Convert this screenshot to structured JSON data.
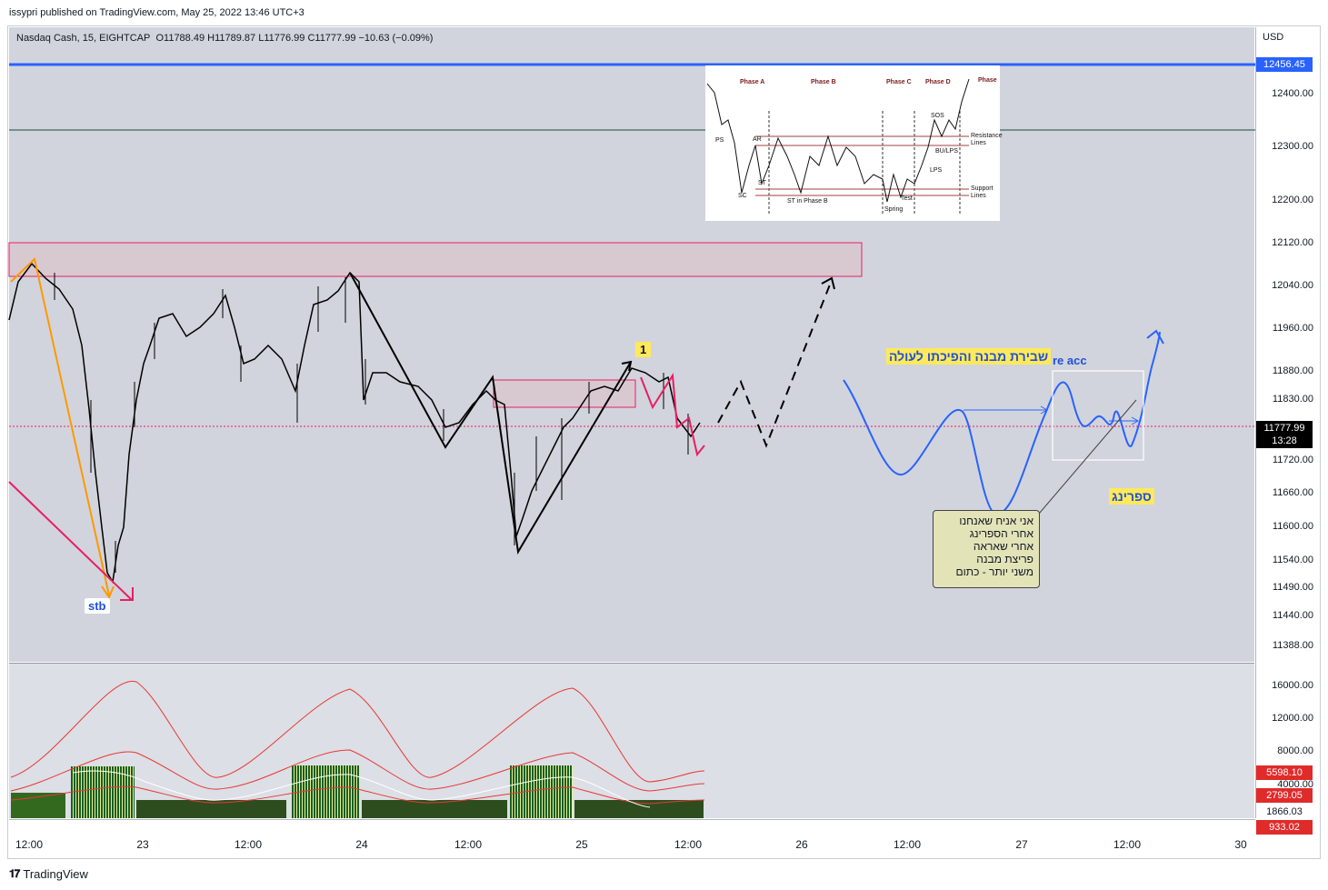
{
  "publisher_line": "issypri published on TradingView.com, May 25, 2022 13:46 UTC+3",
  "legend": {
    "symbol": "Nasdaq Cash, 15, EIGHTCAP",
    "ohlc": "O11788.49  H11789.87  L11776.99  C11777.99  −10.63 (−0.09%)"
  },
  "currency": "USD",
  "price_axis": [
    "12400.00",
    "12300.00",
    "12200.00",
    "12120.00",
    "12040.00",
    "11960.00",
    "11880.00",
    "11830.00",
    "11720.00",
    "11660.00",
    "11600.00",
    "11540.00",
    "11490.00",
    "11440.00",
    "11388.00"
  ],
  "volume_axis": [
    "16000.00",
    "12000.00",
    "8000.00",
    "4000.00"
  ],
  "badges": {
    "line_price": "12456.45",
    "last_price": "11777.99",
    "countdown": "13:28",
    "vol_a": "5598.10",
    "vol_b": "2799.05",
    "vol_c": "1866.03",
    "vol_d": "933.02"
  },
  "colors": {
    "up": "#000000",
    "down": "#000000",
    "blue_line": "#2962ff",
    "zone_border": "#e91e63",
    "last_badge": "#000000",
    "vol_badge_red": "#e02b2b"
  },
  "time_axis": [
    "12:00",
    "23",
    "12:00",
    "24",
    "12:00",
    "25",
    "12:00",
    "26",
    "12:00",
    "27",
    "12:00",
    "30"
  ],
  "annotations": {
    "one": "1",
    "stb": "stb",
    "hebrew_title": "שבירת מבנה והפיכתו לעולה",
    "re_acc": "re acc",
    "spring_label": "ספרינג",
    "note_lines": [
      "אני אניח שאנחנו",
      "אחרי הספרינג",
      "אחרי שאראה",
      "פריצת מבנה",
      "משני יותר - כתום"
    ]
  },
  "wyckoff": {
    "phases": [
      "Phase A",
      "Phase B",
      "Phase C",
      "Phase D",
      "Phase"
    ],
    "labels": [
      "PS",
      "AR",
      "SC",
      "ST",
      "ST in Phase B",
      "Spring",
      "Test",
      "SOS",
      "BU/LPS",
      "LPS",
      "Resistance Lines",
      "Support Lines"
    ]
  },
  "footer": "TradingView"
}
